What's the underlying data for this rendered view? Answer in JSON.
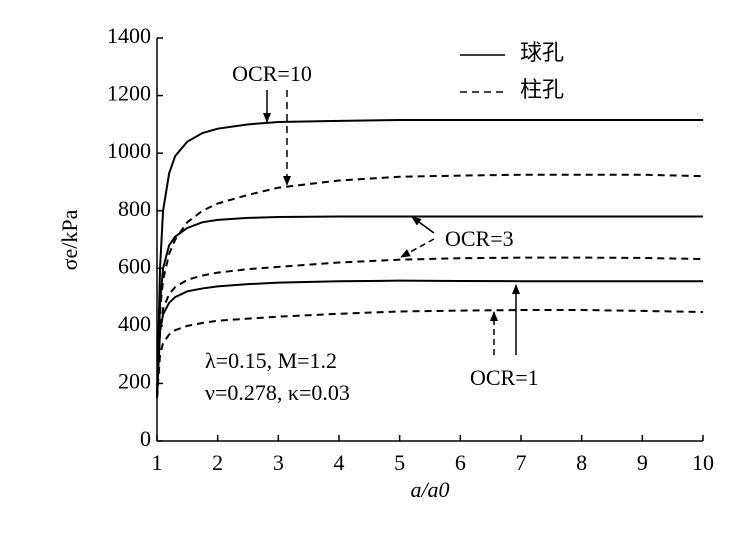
{
  "chart_data": {
    "type": "line",
    "x_label": "a/a0",
    "y_label": "σe/kPa",
    "x": [
      1,
      1.05,
      1.1,
      1.2,
      1.3,
      1.5,
      1.75,
      2,
      2.5,
      3,
      4,
      5,
      6,
      7,
      8,
      9,
      10
    ],
    "series": [
      {
        "dashed": false,
        "color": "#000000",
        "values": [
          150,
          600,
          800,
          930,
          990,
          1040,
          1070,
          1085,
          1100,
          1108,
          1112,
          1115,
          1115,
          1115,
          1115,
          1115,
          1115
        ]
      },
      {
        "dashed": true,
        "color": "#000000",
        "values": [
          150,
          450,
          560,
          650,
          700,
          760,
          800,
          825,
          855,
          880,
          905,
          918,
          922,
          925,
          925,
          925,
          920
        ]
      },
      {
        "dashed": false,
        "color": "#000000",
        "values": [
          150,
          480,
          600,
          680,
          710,
          740,
          760,
          768,
          775,
          778,
          780,
          780,
          780,
          780,
          780,
          780,
          780
        ]
      },
      {
        "dashed": true,
        "color": "#000000",
        "values": [
          150,
          380,
          460,
          510,
          535,
          560,
          575,
          585,
          597,
          605,
          620,
          630,
          635,
          637,
          637,
          636,
          632
        ]
      },
      {
        "dashed": false,
        "color": "#000000",
        "values": [
          150,
          380,
          440,
          480,
          500,
          520,
          530,
          537,
          545,
          550,
          555,
          557,
          556,
          555,
          555,
          555,
          555
        ]
      },
      {
        "dashed": true,
        "color": "#000000",
        "values": [
          150,
          300,
          340,
          370,
          385,
          400,
          410,
          418,
          425,
          432,
          442,
          450,
          453,
          455,
          455,
          452,
          448
        ]
      }
    ],
    "legend": [
      {
        "label": "球孔",
        "dashed": false
      },
      {
        "label": "柱孔",
        "dashed": true
      }
    ],
    "annotations": [
      "OCR=10",
      "OCR=3",
      "OCR=1",
      "λ=0.15, M=1.2",
      "ν=0.278, κ=0.03"
    ],
    "xlim": [
      1,
      10
    ],
    "xticks": [
      1,
      2,
      3,
      4,
      5,
      6,
      7,
      8,
      9,
      10
    ],
    "ylim": [
      0,
      1400
    ],
    "yticks": [
      0,
      200,
      400,
      600,
      800,
      1000,
      1200,
      1400
    ]
  }
}
